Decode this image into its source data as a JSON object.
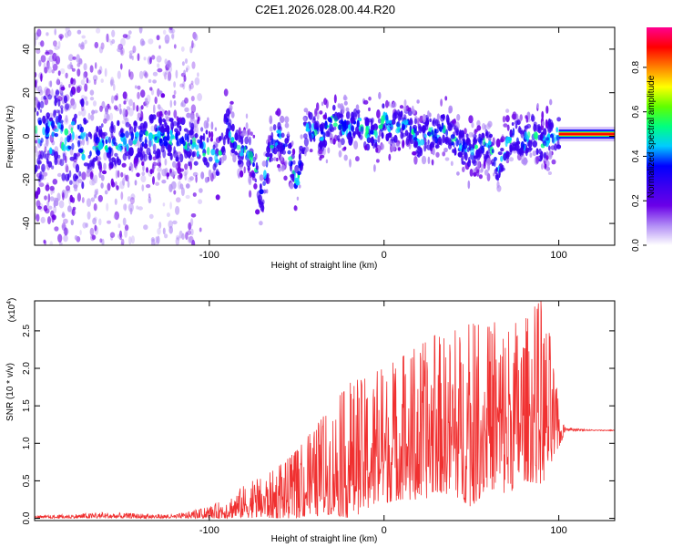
{
  "page": {
    "title": "C2E1.2026.028.00.44.R20"
  },
  "chart_data": [
    {
      "type": "heatmap",
      "title": "C2E1.2026.028.00.44.R20",
      "xlabel": "Height of straight line (km)",
      "ylabel": "Frequency (Hz)",
      "xlim": [
        -200,
        132
      ],
      "ylim": [
        -50,
        50
      ],
      "xticks": [
        -100,
        0,
        100
      ],
      "xtick_labels": [
        "-100",
        "0",
        "100"
      ],
      "yticks": [
        -40,
        -20,
        0,
        20,
        40
      ],
      "ytick_labels": [
        "-40",
        "-20",
        "0",
        "20",
        "40"
      ],
      "ridge_frequency": {
        "x": [
          -195,
          -185,
          -175,
          -168,
          -160,
          -150,
          -140,
          -130,
          -120,
          -110,
          -100,
          -95,
          -90,
          -85,
          -80,
          -75,
          -70,
          -65,
          -60,
          -55,
          -50,
          -45,
          -40,
          -35,
          -30,
          -25,
          -20,
          -15,
          -10,
          -5,
          0,
          5,
          10,
          15,
          20,
          25,
          30,
          35,
          40,
          45,
          50,
          55,
          60,
          65,
          70,
          75,
          80,
          85,
          90,
          95,
          100,
          110,
          120,
          132
        ],
        "y": [
          0,
          0,
          -2,
          -6,
          -4,
          -3,
          -1,
          0,
          -2,
          -3,
          -8,
          -12,
          6,
          -4,
          -7,
          -10,
          -28,
          -5,
          0,
          -6,
          -22,
          3,
          2,
          0,
          8,
          5,
          3,
          6,
          2,
          0,
          8,
          3,
          6,
          4,
          -2,
          2,
          0,
          5,
          -2,
          -5,
          -8,
          -4,
          -3,
          -15,
          -5,
          1,
          -3,
          2,
          -4,
          0,
          1,
          1,
          1,
          1
        ]
      },
      "colorbar": {
        "label": "Normalized spectral amplitude",
        "ticks": [
          0.0,
          0.2,
          0.4,
          0.6,
          0.8
        ],
        "tick_labels": [
          "0.0",
          "0.2",
          "0.4",
          "0.6",
          "0.8"
        ],
        "colors": [
          "#ffffff",
          "#b18cf5",
          "#6a00e8",
          "#3a00f0",
          "#0000ff",
          "#00ccff",
          "#00ff80",
          "#60ff00",
          "#ffff00",
          "#ff8000",
          "#ff0000",
          "#ff0090"
        ]
      }
    },
    {
      "type": "line",
      "xlabel": "Height of straight line (km)",
      "ylabel": "SNR (10 * v/v)",
      "y_scale_label": "(x10",
      "y_scale_exponent": "4",
      "y_scale_suffix": ")",
      "xlim": [
        -200,
        132
      ],
      "ylim": [
        -0.03,
        2.9
      ],
      "xticks": [
        -100,
        0,
        100
      ],
      "xtick_labels": [
        "-100",
        "0",
        "100"
      ],
      "yticks": [
        0.0,
        0.5,
        1.0,
        1.5,
        2.0,
        2.5
      ],
      "ytick_labels": [
        "0.0",
        "0.5",
        "1.0",
        "1.5",
        "2.0",
        "2.5"
      ],
      "series": [
        {
          "name": "SNR",
          "color": "#f03030",
          "envelope_x": [
            -200,
            -160,
            -120,
            -100,
            -90,
            -80,
            -70,
            -60,
            -50,
            -40,
            -30,
            -20,
            -10,
            0,
            10,
            20,
            30,
            40,
            50,
            60,
            70,
            80,
            90,
            95,
            101,
            104,
            110,
            120,
            132
          ],
          "envelope_upper": [
            0.03,
            0.08,
            0.05,
            0.15,
            0.28,
            0.45,
            0.55,
            0.7,
            0.9,
            1.2,
            1.5,
            1.8,
            1.9,
            2.0,
            2.15,
            2.3,
            2.45,
            2.5,
            2.6,
            2.55,
            2.75,
            2.7,
            2.9,
            2.5,
            1.3,
            1.22,
            1.2,
            1.18,
            1.18
          ],
          "envelope_lower": [
            0.0,
            0.0,
            0.0,
            0.0,
            0.0,
            0.01,
            0.0,
            0.0,
            0.0,
            0.02,
            0.05,
            0.0,
            0.1,
            0.2,
            0.25,
            0.2,
            0.35,
            0.3,
            0.15,
            0.4,
            0.3,
            0.5,
            0.45,
            0.6,
            1.0,
            1.14,
            1.15,
            1.16,
            1.16
          ]
        }
      ]
    }
  ]
}
